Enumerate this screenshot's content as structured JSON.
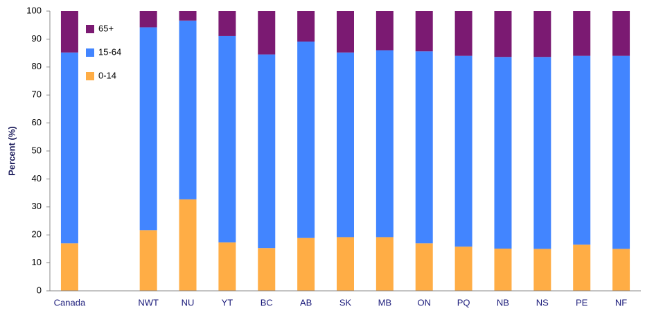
{
  "chart_data": {
    "type": "stacked_bar",
    "y_label": "Percent (%)",
    "categories": [
      "Canada",
      null,
      "NWT",
      "NU",
      "YT",
      "BC",
      "AB",
      "SK",
      "MB",
      "ON",
      "PQ",
      "NB",
      "NS",
      "PE",
      "NF"
    ],
    "series": [
      {
        "name": "0-14",
        "color": "#ffad45",
        "values": [
          17,
          null,
          21.7,
          32.7,
          17.3,
          15.3,
          18.9,
          19.2,
          19.2,
          17,
          15.8,
          15.1,
          15,
          16.5,
          15
        ]
      },
      {
        "name": "15-64",
        "color": "#4285ff",
        "values": [
          68.2,
          null,
          72.5,
          63.9,
          73.8,
          69.2,
          70.2,
          66,
          66.8,
          68.6,
          68.2,
          68.5,
          68.6,
          67.5,
          69
        ]
      },
      {
        "name": "65+",
        "color": "#7b1a72",
        "values": [
          14.8,
          null,
          5.8,
          3.4,
          8.9,
          15.5,
          10.9,
          14.8,
          14,
          14.4,
          16,
          16.4,
          16.4,
          16,
          16
        ]
      }
    ],
    "ylim": [
      0,
      100
    ],
    "yticks": [
      0,
      10,
      20,
      30,
      40,
      50,
      60,
      70,
      80,
      90,
      100
    ],
    "legend": "upper left"
  }
}
